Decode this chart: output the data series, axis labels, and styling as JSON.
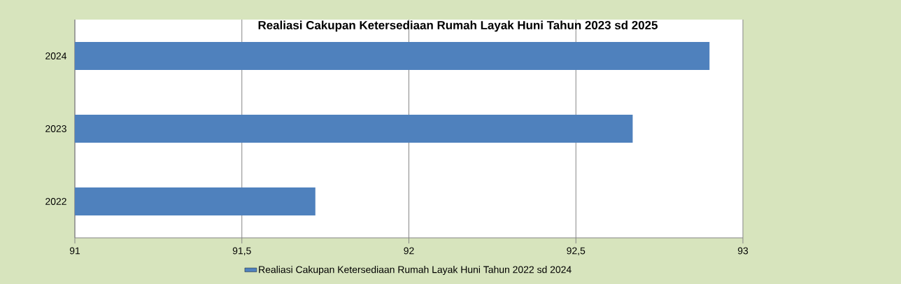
{
  "chart_data": {
    "type": "bar",
    "orientation": "horizontal",
    "title": "Realiasi Cakupan Ketersediaan Rumah Layak Huni Tahun 2023 sd 2025",
    "categories": [
      "2024",
      "2023",
      "2022"
    ],
    "series": [
      {
        "name": "Realiasi Cakupan Ketersediaan Rumah Layak Huni Tahun 2022 sd 2024",
        "color": "#4f81bd",
        "values": [
          92.9,
          92.67,
          91.72
        ]
      }
    ],
    "xlim": [
      91,
      93
    ],
    "xticks": [
      91,
      {
        "value": 91.5,
        "label": "91,5"
      },
      92,
      {
        "value": 92.5,
        "label": "92,5"
      },
      93
    ],
    "grid": "x",
    "legend": "bottom"
  }
}
